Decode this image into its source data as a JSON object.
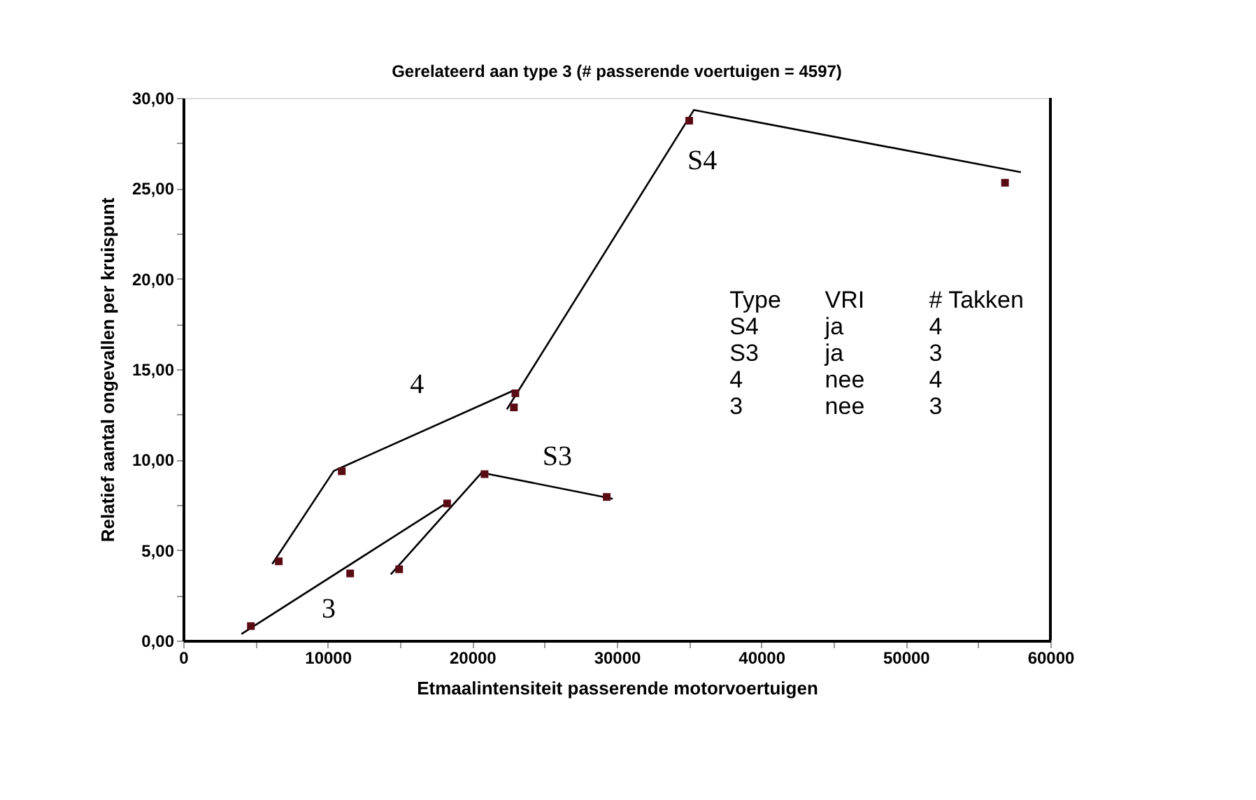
{
  "chart_data": {
    "type": "line",
    "title": "Gerelateerd aan type 3 (# passerende voertuigen = 4597)",
    "xlabel": "Etmaalintensiteit passerende motorvoertuigen",
    "ylabel": "Relatief aantal ongevallen per kruispunt",
    "xlim": [
      0,
      60000
    ],
    "ylim": [
      0,
      30
    ],
    "xticks": [
      0,
      {
        "value": 5000,
        "label": null
      },
      10000,
      {
        "value": 15000,
        "label": null
      },
      20000,
      {
        "value": 25000,
        "label": null
      },
      30000,
      {
        "value": 35000,
        "label": null
      },
      40000,
      {
        "value": 45000,
        "label": null
      },
      50000,
      {
        "value": 55000,
        "label": null
      },
      60000
    ],
    "yticks": [
      {
        "value": 0,
        "label": "0,00"
      },
      {
        "value": 2.5,
        "label": null
      },
      {
        "value": 5,
        "label": "5,00"
      },
      {
        "value": 7.5,
        "label": null
      },
      {
        "value": 10,
        "label": "10,00"
      },
      {
        "value": 12.5,
        "label": null
      },
      {
        "value": 15,
        "label": "15,00"
      },
      {
        "value": 17.5,
        "label": null
      },
      {
        "value": 20,
        "label": "20,00"
      },
      {
        "value": 22.5,
        "label": null
      },
      {
        "value": 25,
        "label": "25,00"
      },
      {
        "value": 27.5,
        "label": null
      },
      {
        "value": 30,
        "label": "30,00"
      }
    ],
    "series": [
      {
        "name": "S4",
        "color": "#000000",
        "x": [
          22390,
          35330,
          57960
        ],
        "values": [
          12.78,
          29.33,
          25.89
        ]
      },
      {
        "name": "S3",
        "color": "#000000",
        "x": [
          14360,
          20650,
          29720
        ],
        "values": [
          3.66,
          9.28,
          7.84
        ]
      },
      {
        "name": "4",
        "color": "#000000",
        "x": [
          6160,
          10420,
          22850
        ],
        "values": [
          4.23,
          9.38,
          13.82
        ]
      },
      {
        "name": "3",
        "color": "#000000",
        "x": [
          4030,
          18400
        ],
        "values": [
          0.36,
          7.7
        ]
      },
      {
        "color": "#5a0a14",
        "type": "scatter",
        "marker": "square",
        "x": [
          4680,
          6610,
          10970,
          11550,
          14940,
          18260,
          20850,
          22980,
          22880,
          29300,
          35010,
          56860
        ],
        "values": [
          0.8,
          4.38,
          9.36,
          3.71,
          3.94,
          7.58,
          9.2,
          13.67,
          12.89,
          7.94,
          28.74,
          25.31
        ]
      }
    ],
    "annotations": [
      "Type",
      "VRI",
      "# Takken",
      "S4",
      "ja",
      "4",
      "S3",
      "ja",
      "3",
      "4",
      "nee",
      "4",
      "3",
      "nee",
      "3"
    ],
    "grid": false
  }
}
